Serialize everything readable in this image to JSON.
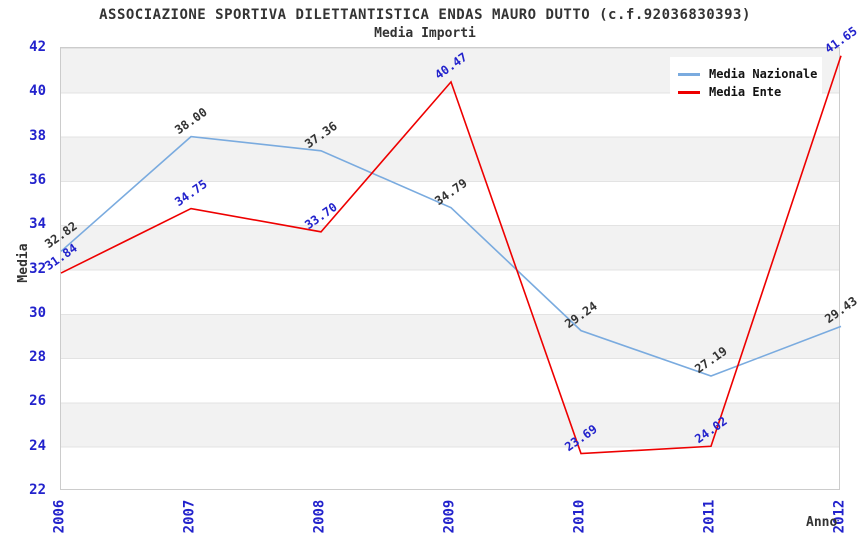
{
  "header": {
    "title": "ASSOCIAZIONE SPORTIVA DILETTANTISTICA ENDAS MAURO DUTTO (c.f.92036830393)",
    "subtitle": "Media Importi"
  },
  "colors": {
    "nazionale_line": "#7aabdf",
    "ente_line": "#ee0000",
    "axis_tick_text": "#2222cc",
    "dark_label_text": "#333333",
    "band_gray": "#f2f2f2",
    "plot_border": "#cccccc"
  },
  "chart_data": {
    "type": "line",
    "title": "ASSOCIAZIONE SPORTIVA DILETTANTISTICA ENDAS MAURO DUTTO (c.f.92036830393)",
    "subtitle": "Media Importi",
    "xlabel": "Anno",
    "ylabel": "Media",
    "x": [
      2006,
      2007,
      2008,
      2009,
      2010,
      2011,
      2012
    ],
    "series": [
      {
        "name": "Media Nazionale",
        "color": "#7aabdf",
        "label_color": "#333333",
        "values": [
          32.82,
          38.0,
          37.36,
          34.79,
          29.24,
          27.19,
          29.43
        ]
      },
      {
        "name": "Media Ente",
        "color": "#ee0000",
        "label_color": "#2222cc",
        "values": [
          31.84,
          34.75,
          33.7,
          40.47,
          23.69,
          24.02,
          41.65
        ]
      }
    ],
    "ylim": [
      22,
      42
    ],
    "yticks": [
      22,
      24,
      26,
      28,
      30,
      32,
      34,
      36,
      38,
      40,
      42
    ],
    "grid": "horizontal-bands-alternating",
    "legend_position": "top-right",
    "data_label_format": "2-decimals"
  }
}
